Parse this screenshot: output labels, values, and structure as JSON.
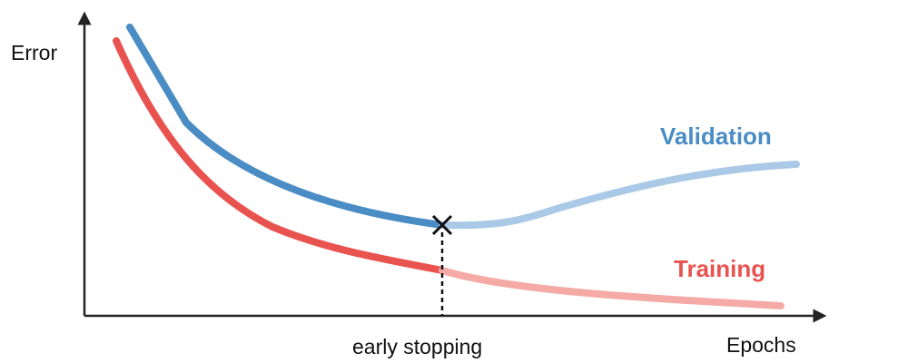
{
  "axes": {
    "y_label": "Error",
    "x_label": "Epochs"
  },
  "curves": {
    "validation": "Validation",
    "training": "Training"
  },
  "annotation": "early stopping"
}
